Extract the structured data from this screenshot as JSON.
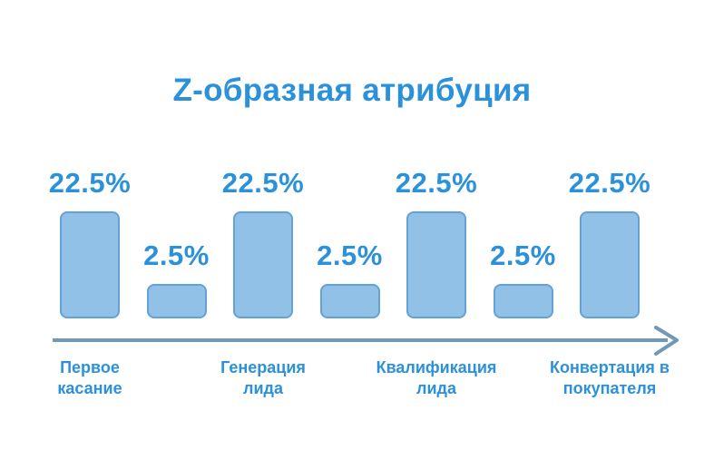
{
  "title": "Z-образная атрибуция",
  "chart_data": {
    "type": "bar",
    "title": "Z-образная атрибуция",
    "categories": [
      "Первое касание",
      "Генерация лида",
      "Квалификация лида",
      "Конвертация в покупателя"
    ],
    "values": [
      22.5,
      2.5,
      22.5,
      2.5,
      22.5,
      2.5,
      22.5
    ],
    "value_labels": [
      "22.5%",
      "2.5%",
      "22.5%",
      "2.5%",
      "22.5%",
      "2.5%",
      "22.5%"
    ],
    "stage_label_lines": [
      [
        "Первое",
        "касание"
      ],
      [
        "Генерация",
        "лида"
      ],
      [
        "Квалификация",
        "лида"
      ],
      [
        "Конвертация в",
        "покупателя"
      ]
    ],
    "xlabel": "",
    "ylabel": "",
    "legend": false,
    "grid": false,
    "axis_style": "horizontal right-pointing arrow below bars"
  },
  "colors": {
    "background": "#FFFFFF",
    "text_blue": "#2A91DA",
    "bar_fill": "#92C1E8",
    "bar_border": "#63A2D8",
    "axis_arrow": "#7297B9"
  }
}
